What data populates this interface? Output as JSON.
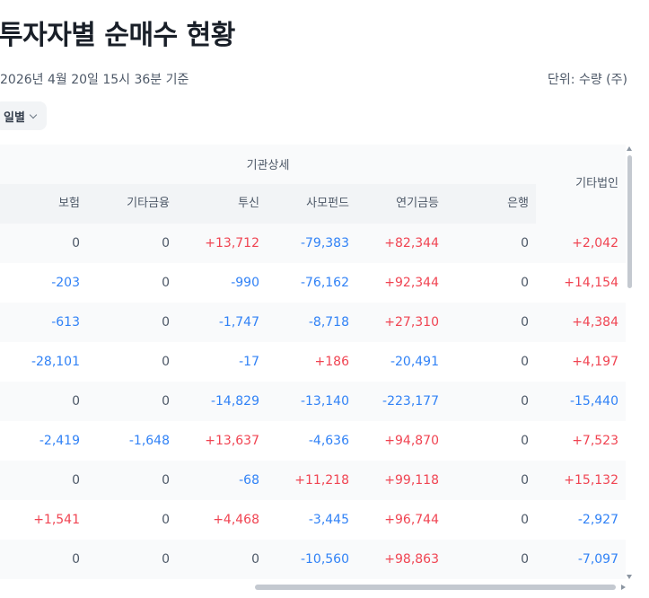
{
  "page": {
    "title": "투자자별 순매수 현황",
    "timestamp": "2026년 4월 20일 15시 36분 기준",
    "unit": "단위: 수량 (주)"
  },
  "filter": {
    "period_label": "일별"
  },
  "table": {
    "group_header": "기관상세",
    "columns": [
      "보험",
      "기타금융",
      "투신",
      "사모펀드",
      "연기금등",
      "은행",
      "기타법인"
    ],
    "rows": [
      [
        "0",
        "0",
        "+13,712",
        "-79,383",
        "+82,344",
        "0",
        "+2,042"
      ],
      [
        "-203",
        "0",
        "-990",
        "-76,162",
        "+92,344",
        "0",
        "+14,154"
      ],
      [
        "-613",
        "0",
        "-1,747",
        "-8,718",
        "+27,310",
        "0",
        "+4,384"
      ],
      [
        "-28,101",
        "0",
        "-17",
        "+186",
        "-20,491",
        "0",
        "+4,197"
      ],
      [
        "0",
        "0",
        "-14,829",
        "-13,140",
        "-223,177",
        "0",
        "-15,440"
      ],
      [
        "-2,419",
        "-1,648",
        "+13,637",
        "-4,636",
        "+94,870",
        "0",
        "+7,523"
      ],
      [
        "0",
        "0",
        "-68",
        "+11,218",
        "+99,118",
        "0",
        "+15,132"
      ],
      [
        "+1,541",
        "0",
        "+4,468",
        "-3,445",
        "+96,744",
        "0",
        "-2,927"
      ],
      [
        "0",
        "0",
        "0",
        "-10,560",
        "+98,863",
        "0",
        "-7,097"
      ]
    ]
  },
  "colors": {
    "positive": "#f04452",
    "negative": "#3182f6",
    "neutral": "#4e5968"
  }
}
